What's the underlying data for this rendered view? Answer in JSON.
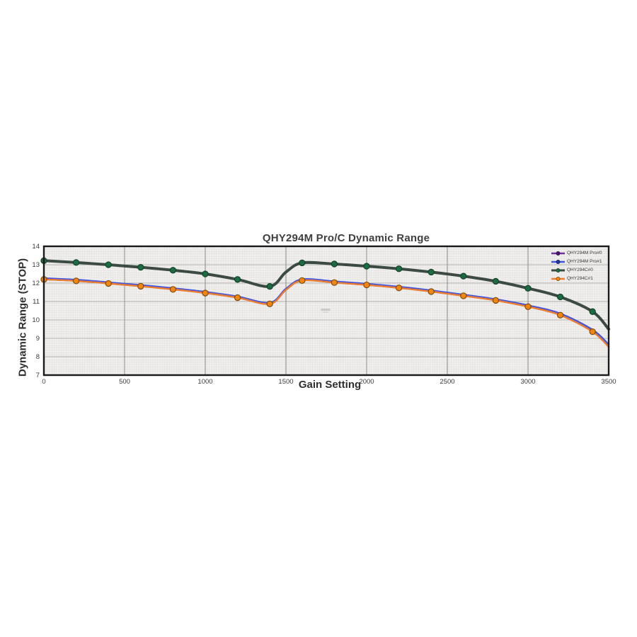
{
  "chart_data": {
    "type": "line",
    "title": "QHY294M Pro/C Dynamic Range",
    "xlabel": "Gain Setting",
    "ylabel": "Dynamic Range (STOP)",
    "xlim": [
      0,
      3500
    ],
    "ylim": [
      7,
      14
    ],
    "x_ticks": [
      0,
      500,
      1000,
      1500,
      2000,
      2500,
      3000,
      3500
    ],
    "y_ticks": [
      7,
      8,
      9,
      10,
      11,
      12,
      13,
      14
    ],
    "grid": "fine-mesh minor grid with darker major lines",
    "legend_position": "top-right inside plot",
    "marker_interval": 200,
    "plot_bg_color": "#f1f0ee",
    "minor_grid_color": "#d6d5d1",
    "major_h_grid_color": "#b5b4b0",
    "major_v_grid_color": "#9b9a96",
    "border_color": "#1a1a1a",
    "x": [
      0,
      200,
      400,
      600,
      800,
      1000,
      1200,
      1400,
      1500,
      1600,
      1800,
      2000,
      2200,
      2400,
      2600,
      2800,
      3000,
      3200,
      3400,
      3500
    ],
    "series": [
      {
        "name": "QHY294M Pro#0",
        "color": "#7030a0",
        "marker_color": "#45176b",
        "marker_edge": "#2d0f47",
        "width": 2.6,
        "values": [
          12.21,
          12.13,
          11.99,
          11.84,
          11.67,
          11.47,
          11.22,
          10.88,
          11.64,
          12.15,
          12.04,
          11.91,
          11.75,
          11.55,
          11.32,
          11.07,
          10.73,
          10.27,
          9.37,
          8.55
        ]
      },
      {
        "name": "QHY294M Pro#1",
        "color": "#4156e0",
        "marker_color": "#24349e",
        "marker_edge": "#141f66",
        "width": 2.6,
        "values": [
          12.26,
          12.18,
          12.04,
          11.89,
          11.72,
          11.52,
          11.27,
          10.93,
          11.69,
          12.2,
          12.09,
          11.96,
          11.8,
          11.6,
          11.37,
          11.12,
          10.79,
          10.34,
          9.46,
          8.66
        ]
      },
      {
        "name": "QHY294C#0",
        "color": "#3c4a44",
        "marker_color": "#1c6b41",
        "marker_edge": "#123f26",
        "width": 4,
        "values": [
          13.22,
          13.12,
          13.0,
          12.86,
          12.7,
          12.5,
          12.2,
          11.82,
          12.6,
          13.1,
          13.04,
          12.92,
          12.78,
          12.6,
          12.38,
          12.1,
          11.72,
          11.25,
          10.45,
          9.5
        ]
      },
      {
        "name": "QHY294C#1",
        "color": "#ed7d31",
        "marker_color": "#f08510",
        "marker_edge": "#7a4608",
        "width": 2.4,
        "values": [
          12.2,
          12.12,
          11.98,
          11.83,
          11.66,
          11.46,
          11.21,
          10.87,
          11.63,
          12.14,
          12.03,
          11.9,
          11.74,
          11.54,
          11.31,
          11.06,
          10.72,
          10.26,
          9.36,
          8.54
        ]
      }
    ]
  }
}
